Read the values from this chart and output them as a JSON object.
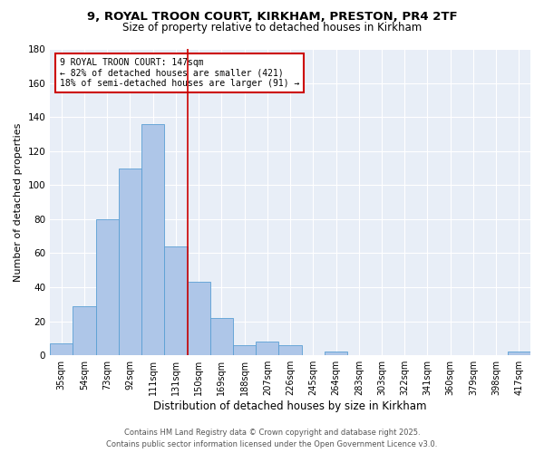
{
  "title1": "9, ROYAL TROON COURT, KIRKHAM, PRESTON, PR4 2TF",
  "title2": "Size of property relative to detached houses in Kirkham",
  "xlabel": "Distribution of detached houses by size in Kirkham",
  "ylabel": "Number of detached properties",
  "footer1": "Contains HM Land Registry data © Crown copyright and database right 2025.",
  "footer2": "Contains public sector information licensed under the Open Government Licence v3.0.",
  "bin_labels": [
    "35sqm",
    "54sqm",
    "73sqm",
    "92sqm",
    "111sqm",
    "131sqm",
    "150sqm",
    "169sqm",
    "188sqm",
    "207sqm",
    "226sqm",
    "245sqm",
    "264sqm",
    "283sqm",
    "303sqm",
    "322sqm",
    "341sqm",
    "360sqm",
    "379sqm",
    "398sqm",
    "417sqm"
  ],
  "bar_heights": [
    7,
    29,
    80,
    110,
    136,
    64,
    43,
    22,
    6,
    8,
    6,
    0,
    2,
    0,
    0,
    0,
    0,
    0,
    0,
    0,
    2
  ],
  "bar_color": "#aec6e8",
  "bar_edge_color": "#5a9fd4",
  "annotation_line1": "9 ROYAL TROON COURT: 147sqm",
  "annotation_line2": "← 82% of detached houses are smaller (421)",
  "annotation_line3": "18% of semi-detached houses are larger (91) →",
  "vline_x": 5.5,
  "vline_color": "#cc0000",
  "annotation_box_edge_color": "#cc0000",
  "background_color": "#e8eef7",
  "ylim": [
    0,
    180
  ],
  "yticks": [
    0,
    20,
    40,
    60,
    80,
    100,
    120,
    140,
    160,
    180
  ],
  "title1_fontsize": 9.5,
  "title2_fontsize": 8.5,
  "xlabel_fontsize": 8.5,
  "ylabel_fontsize": 8.0,
  "annotation_fontsize": 7.0,
  "tick_fontsize": 7.0,
  "ytick_fontsize": 7.5,
  "footer_fontsize": 6.0
}
